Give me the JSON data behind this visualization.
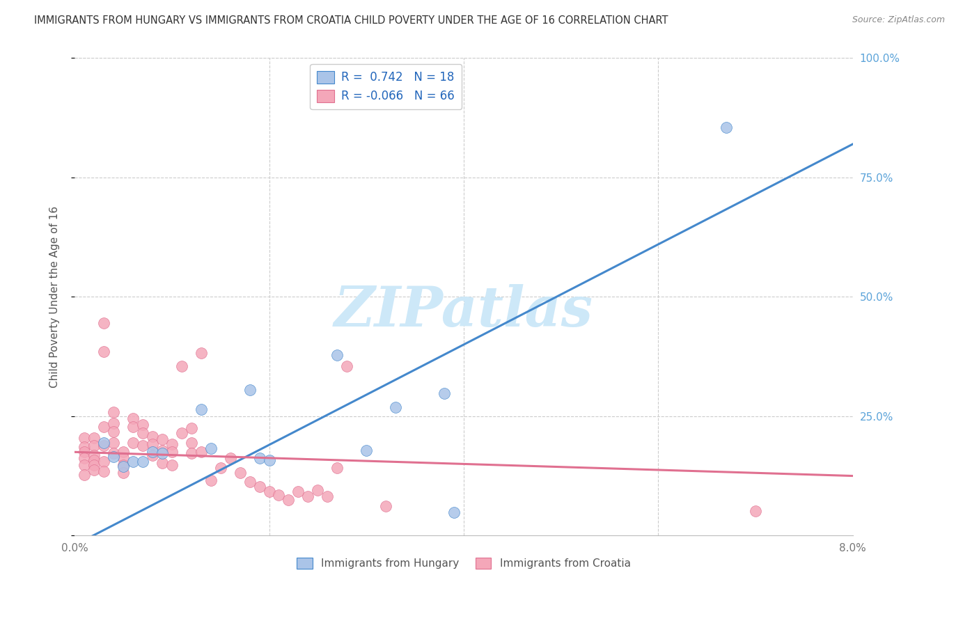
{
  "title": "IMMIGRANTS FROM HUNGARY VS IMMIGRANTS FROM CROATIA CHILD POVERTY UNDER THE AGE OF 16 CORRELATION CHART",
  "source": "Source: ZipAtlas.com",
  "xlabel": "",
  "ylabel": "Child Poverty Under the Age of 16",
  "xlim": [
    0.0,
    0.08
  ],
  "ylim": [
    0.0,
    1.0
  ],
  "xticks": [
    0.0,
    0.02,
    0.04,
    0.06,
    0.08
  ],
  "xtick_labels": [
    "0.0%",
    "",
    "",
    "",
    "8.0%"
  ],
  "yticks": [
    0.0,
    0.25,
    0.5,
    0.75,
    1.0
  ],
  "ytick_labels_right": [
    "",
    "25.0%",
    "50.0%",
    "75.0%",
    "100.0%"
  ],
  "hungary_color": "#aac4e8",
  "croatia_color": "#f4a7b9",
  "hungary_line_color": "#4488cc",
  "croatia_line_color": "#e07090",
  "hungary_R": 0.742,
  "hungary_N": 18,
  "croatia_R": -0.066,
  "croatia_N": 66,
  "watermark": "ZIPatlas",
  "watermark_color": "#cde8f8",
  "legend_label_hungary": "Immigrants from Hungary",
  "legend_label_croatia": "Immigrants from Croatia",
  "hungary_line_x0": 0.0,
  "hungary_line_y0": -0.02,
  "hungary_line_x1": 0.08,
  "hungary_line_y1": 0.82,
  "croatia_line_x0": 0.0,
  "croatia_line_y0": 0.175,
  "croatia_line_x1": 0.08,
  "croatia_line_y1": 0.125,
  "hungary_x": [
    0.003,
    0.004,
    0.005,
    0.006,
    0.007,
    0.008,
    0.009,
    0.013,
    0.014,
    0.018,
    0.019,
    0.02,
    0.027,
    0.03,
    0.033,
    0.038,
    0.039,
    0.067
  ],
  "hungary_y": [
    0.195,
    0.165,
    0.145,
    0.155,
    0.155,
    0.175,
    0.172,
    0.265,
    0.182,
    0.305,
    0.162,
    0.158,
    0.378,
    0.178,
    0.268,
    0.298,
    0.048,
    0.855
  ],
  "croatia_x": [
    0.001,
    0.001,
    0.001,
    0.001,
    0.001,
    0.001,
    0.002,
    0.002,
    0.002,
    0.002,
    0.002,
    0.002,
    0.003,
    0.003,
    0.003,
    0.003,
    0.003,
    0.003,
    0.004,
    0.004,
    0.004,
    0.004,
    0.004,
    0.005,
    0.005,
    0.005,
    0.005,
    0.006,
    0.006,
    0.006,
    0.007,
    0.007,
    0.007,
    0.008,
    0.008,
    0.008,
    0.009,
    0.009,
    0.009,
    0.01,
    0.01,
    0.01,
    0.011,
    0.011,
    0.012,
    0.012,
    0.012,
    0.013,
    0.013,
    0.014,
    0.015,
    0.016,
    0.017,
    0.018,
    0.019,
    0.02,
    0.021,
    0.022,
    0.023,
    0.024,
    0.025,
    0.026,
    0.027,
    0.028,
    0.032,
    0.07
  ],
  "croatia_y": [
    0.205,
    0.185,
    0.175,
    0.162,
    0.148,
    0.128,
    0.205,
    0.188,
    0.168,
    0.158,
    0.148,
    0.138,
    0.445,
    0.385,
    0.228,
    0.188,
    0.155,
    0.135,
    0.258,
    0.235,
    0.218,
    0.195,
    0.172,
    0.175,
    0.162,
    0.148,
    0.132,
    0.245,
    0.228,
    0.195,
    0.232,
    0.215,
    0.188,
    0.208,
    0.192,
    0.168,
    0.202,
    0.178,
    0.152,
    0.192,
    0.175,
    0.148,
    0.355,
    0.215,
    0.225,
    0.195,
    0.172,
    0.382,
    0.175,
    0.115,
    0.142,
    0.162,
    0.132,
    0.112,
    0.102,
    0.092,
    0.085,
    0.075,
    0.092,
    0.082,
    0.095,
    0.082,
    0.142,
    0.355,
    0.062,
    0.052
  ]
}
